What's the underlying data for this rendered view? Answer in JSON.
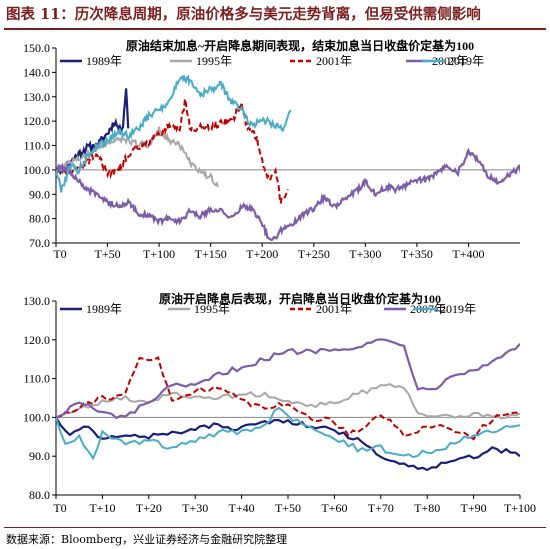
{
  "figure_title": "图表 11：历次降息周期，原油价格多与美元走势背离，但易受供需侧影响",
  "source": "数据来源：Bloomberg，兴业证券经济与金融研究院整理",
  "colors": {
    "1989": "#1b1f78",
    "1995": "#a8a8a8",
    "2001": "#c00000",
    "2007": "#7b5ea7",
    "2019": "#4aacc5",
    "title": "#7a1f1f"
  },
  "chart_data": [
    {
      "type": "line",
      "title": "原油结束加息~开启降息期间表现，结束加息当日收盘价定基为100",
      "xlim": [
        0,
        450
      ],
      "ylim": [
        70,
        150
      ],
      "yticks": [
        70.0,
        80.0,
        90.0,
        100.0,
        110.0,
        120.0,
        130.0,
        140.0,
        150.0
      ],
      "xticks": [
        {
          "v": 0,
          "label": "T0"
        },
        {
          "v": 50,
          "label": "T+50"
        },
        {
          "v": 100,
          "label": "T+100"
        },
        {
          "v": 150,
          "label": "T+150"
        },
        {
          "v": 200,
          "label": "T+200"
        },
        {
          "v": 250,
          "label": "T+250"
        },
        {
          "v": 300,
          "label": "T+300"
        },
        {
          "v": 350,
          "label": "T+350"
        },
        {
          "v": 400,
          "label": "T+400"
        }
      ],
      "ref_line": 100,
      "series": [
        {
          "name": "1989年",
          "key": "1989",
          "dash": false,
          "end": 70,
          "vol": 1.6,
          "anchors": [
            [
              0,
              100
            ],
            [
              10,
              101
            ],
            [
              20,
              106
            ],
            [
              30,
              109
            ],
            [
              40,
              110
            ],
            [
              50,
              115
            ],
            [
              57,
              120
            ],
            [
              62,
              116
            ],
            [
              65,
              119
            ],
            [
              68,
              134
            ],
            [
              70,
              117
            ]
          ]
        },
        {
          "name": "1995年",
          "key": "1995",
          "dash": false,
          "end": 157,
          "vol": 1.2,
          "anchors": [
            [
              0,
              100
            ],
            [
              20,
              104
            ],
            [
              40,
              109
            ],
            [
              60,
              113
            ],
            [
              75,
              111
            ],
            [
              90,
              110
            ],
            [
              100,
              117
            ],
            [
              110,
              112
            ],
            [
              120,
              110
            ],
            [
              130,
              103
            ],
            [
              140,
              99
            ],
            [
              150,
              97
            ],
            [
              157,
              93
            ]
          ]
        },
        {
          "name": "2001年",
          "key": "2001",
          "dash": true,
          "end": 225,
          "vol": 1.4,
          "anchors": [
            [
              0,
              100
            ],
            [
              15,
              99
            ],
            [
              30,
              103
            ],
            [
              40,
              107
            ],
            [
              50,
              98
            ],
            [
              60,
              100
            ],
            [
              75,
              109
            ],
            [
              85,
              110
            ],
            [
              100,
              115
            ],
            [
              110,
              118
            ],
            [
              120,
              117
            ],
            [
              125,
              128
            ],
            [
              130,
              117
            ],
            [
              150,
              118
            ],
            [
              170,
              120
            ],
            [
              180,
              127
            ],
            [
              185,
              118
            ],
            [
              195,
              113
            ],
            [
              200,
              103
            ],
            [
              207,
              95
            ],
            [
              213,
              100
            ],
            [
              218,
              87
            ],
            [
              225,
              92
            ]
          ]
        },
        {
          "name": "2007年",
          "key": "2007",
          "dash": false,
          "end": 478,
          "vol": 1.1,
          "anchors": [
            [
              0,
              100
            ],
            [
              10,
              101
            ],
            [
              20,
              96
            ],
            [
              30,
              92
            ],
            [
              40,
              90
            ],
            [
              50,
              87
            ],
            [
              60,
              85
            ],
            [
              70,
              87
            ],
            [
              80,
              82
            ],
            [
              90,
              81
            ],
            [
              100,
              79
            ],
            [
              110,
              80
            ],
            [
              120,
              79
            ],
            [
              130,
              83
            ],
            [
              140,
              81
            ],
            [
              150,
              84
            ],
            [
              160,
              83
            ],
            [
              170,
              80
            ],
            [
              180,
              85
            ],
            [
              190,
              84
            ],
            [
              200,
              78
            ],
            [
              205,
              73
            ],
            [
              210,
              71
            ],
            [
              220,
              76
            ],
            [
              230,
              78
            ],
            [
              240,
              82
            ],
            [
              250,
              84
            ],
            [
              260,
              89
            ],
            [
              270,
              85
            ],
            [
              280,
              88
            ],
            [
              290,
              91
            ],
            [
              300,
              95
            ],
            [
              310,
              90
            ],
            [
              320,
              93
            ],
            [
              330,
              92
            ],
            [
              340,
              94
            ],
            [
              350,
              96
            ],
            [
              360,
              96
            ],
            [
              370,
              99
            ],
            [
              380,
              102
            ],
            [
              390,
              99
            ],
            [
              400,
              107
            ],
            [
              410,
              104
            ],
            [
              420,
              97
            ],
            [
              430,
              95
            ],
            [
              440,
              98
            ],
            [
              450,
              101
            ],
            [
              460,
              102
            ],
            [
              470,
              106
            ],
            [
              478,
              112
            ]
          ]
        },
        {
          "name": "2019年",
          "key": "2019",
          "dash": false,
          "end": 228,
          "vol": 1.4,
          "anchors": [
            [
              0,
              100
            ],
            [
              5,
              92
            ],
            [
              10,
              97
            ],
            [
              15,
              103
            ],
            [
              20,
              99
            ],
            [
              25,
              102
            ],
            [
              30,
              105
            ],
            [
              40,
              110
            ],
            [
              50,
              112
            ],
            [
              60,
              116
            ],
            [
              70,
              114
            ],
            [
              80,
              117
            ],
            [
              90,
              122
            ],
            [
              100,
              125
            ],
            [
              110,
              128
            ],
            [
              120,
              138
            ],
            [
              130,
              137
            ],
            [
              140,
              131
            ],
            [
              150,
              133
            ],
            [
              160,
              135
            ],
            [
              170,
              128
            ],
            [
              180,
              125
            ],
            [
              190,
              118
            ],
            [
              200,
              121
            ],
            [
              210,
              119
            ],
            [
              220,
              117
            ],
            [
              228,
              124
            ]
          ]
        }
      ]
    },
    {
      "type": "line",
      "title": "原油开启降息后表现，开启降息当日收盘价定基为100",
      "xlim": [
        0,
        100
      ],
      "ylim": [
        80,
        130
      ],
      "yticks": [
        80.0,
        90.0,
        100.0,
        110.0,
        120.0,
        130.0
      ],
      "xticks": [
        {
          "v": 0,
          "label": "T0"
        },
        {
          "v": 10,
          "label": "T+10"
        },
        {
          "v": 20,
          "label": "T+20"
        },
        {
          "v": 30,
          "label": "T+30"
        },
        {
          "v": 40,
          "label": "T+40"
        },
        {
          "v": 50,
          "label": "T+50"
        },
        {
          "v": 60,
          "label": "T+60"
        },
        {
          "v": 70,
          "label": "T+70"
        },
        {
          "v": 80,
          "label": "T+80"
        },
        {
          "v": 90,
          "label": "T+90"
        },
        {
          "v": 100,
          "label": "T+100"
        }
      ],
      "ref_line": 100,
      "series": [
        {
          "name": "1989年",
          "key": "1989",
          "dash": false,
          "end": 100,
          "vol": 0.7,
          "anchors": [
            [
              0,
              100
            ],
            [
              3,
              95
            ],
            [
              6,
              98
            ],
            [
              10,
              94
            ],
            [
              15,
              96
            ],
            [
              20,
              95
            ],
            [
              25,
              96
            ],
            [
              30,
              97
            ],
            [
              35,
              98
            ],
            [
              40,
              97
            ],
            [
              45,
              99
            ],
            [
              50,
              99
            ],
            [
              55,
              98
            ],
            [
              60,
              97
            ],
            [
              65,
              94
            ],
            [
              70,
              90
            ],
            [
              75,
              88
            ],
            [
              80,
              87
            ],
            [
              85,
              89
            ],
            [
              90,
              90
            ],
            [
              95,
              92
            ],
            [
              100,
              90
            ]
          ]
        },
        {
          "name": "1995年",
          "key": "1995",
          "dash": false,
          "end": 100,
          "vol": 0.6,
          "anchors": [
            [
              0,
              100
            ],
            [
              5,
              102
            ],
            [
              10,
              104
            ],
            [
              15,
              105
            ],
            [
              20,
              104
            ],
            [
              25,
              106
            ],
            [
              30,
              105
            ],
            [
              35,
              105
            ],
            [
              40,
              106
            ],
            [
              45,
              106
            ],
            [
              50,
              104
            ],
            [
              55,
              103
            ],
            [
              60,
              104
            ],
            [
              65,
              106
            ],
            [
              70,
              108
            ],
            [
              75,
              108
            ],
            [
              78,
              101
            ],
            [
              85,
              100
            ],
            [
              90,
              101
            ],
            [
              95,
              100
            ],
            [
              100,
              101
            ]
          ]
        },
        {
          "name": "2001年",
          "key": "2001",
          "dash": true,
          "end": 100,
          "vol": 0.8,
          "anchors": [
            [
              0,
              100
            ],
            [
              5,
              103
            ],
            [
              10,
              105
            ],
            [
              15,
              106
            ],
            [
              18,
              115
            ],
            [
              22,
              115
            ],
            [
              25,
              104
            ],
            [
              30,
              107
            ],
            [
              35,
              108
            ],
            [
              40,
              104
            ],
            [
              45,
              103
            ],
            [
              50,
              103
            ],
            [
              55,
              100
            ],
            [
              60,
              99
            ],
            [
              63,
              96
            ],
            [
              67,
              98
            ],
            [
              70,
              101
            ],
            [
              73,
              98
            ],
            [
              75,
              95
            ],
            [
              80,
              98
            ],
            [
              85,
              97
            ],
            [
              90,
              95
            ],
            [
              95,
              101
            ],
            [
              100,
              101
            ]
          ]
        },
        {
          "name": "2007年",
          "key": "2007",
          "dash": false,
          "end": 100,
          "vol": 0.7,
          "anchors": [
            [
              0,
              100
            ],
            [
              5,
              104
            ],
            [
              10,
              101
            ],
            [
              15,
              100
            ],
            [
              20,
              104
            ],
            [
              25,
              108
            ],
            [
              30,
              108
            ],
            [
              35,
              111
            ],
            [
              40,
              113
            ],
            [
              45,
              115
            ],
            [
              50,
              117
            ],
            [
              55,
              117
            ],
            [
              60,
              118
            ],
            [
              65,
              118
            ],
            [
              70,
              120
            ],
            [
              75,
              119
            ],
            [
              78,
              107
            ],
            [
              82,
              108
            ],
            [
              85,
              111
            ],
            [
              90,
              112
            ],
            [
              95,
              115
            ],
            [
              100,
              119
            ]
          ]
        },
        {
          "name": "2019年",
          "key": "2019",
          "dash": false,
          "end": 100,
          "vol": 0.8,
          "anchors": [
            [
              0,
              100
            ],
            [
              2,
              93
            ],
            [
              5,
              95
            ],
            [
              8,
              90
            ],
            [
              10,
              96
            ],
            [
              15,
              93
            ],
            [
              20,
              94
            ],
            [
              25,
              92
            ],
            [
              30,
              94
            ],
            [
              35,
              96
            ],
            [
              40,
              96
            ],
            [
              45,
              98
            ],
            [
              48,
              103
            ],
            [
              50,
              100
            ],
            [
              55,
              98
            ],
            [
              60,
              95
            ],
            [
              65,
              92
            ],
            [
              70,
              92
            ],
            [
              75,
              90
            ],
            [
              80,
              91
            ],
            [
              85,
              93
            ],
            [
              90,
              96
            ],
            [
              95,
              97
            ],
            [
              100,
              98
            ]
          ]
        }
      ]
    }
  ]
}
